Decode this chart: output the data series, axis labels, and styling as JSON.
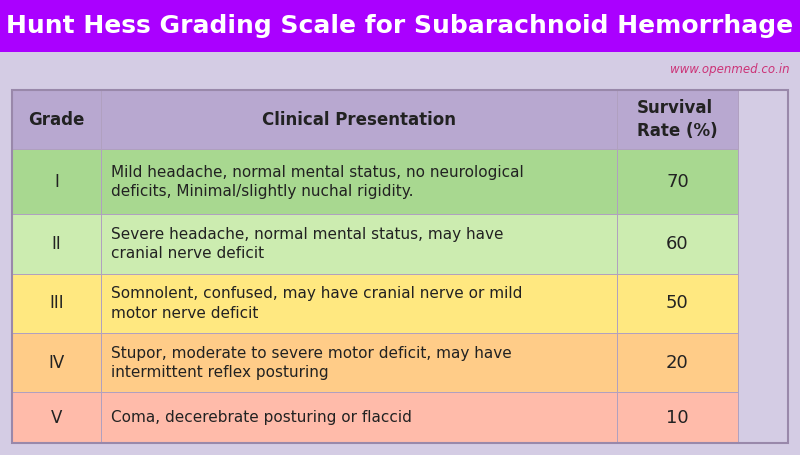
{
  "title": "Hunt Hess Grading Scale for Subarachnoid Hemorrhage",
  "title_bg": "#aa00ff",
  "title_color": "#ffffff",
  "watermark": "www.openmed.co.in",
  "watermark_color": "#cc3377",
  "bg_color": "#d4cce4",
  "header_bg": "#b8a8d0",
  "col_headers": [
    "Grade",
    "Clinical Presentation",
    "Survival\nRate (%)"
  ],
  "grades": [
    "I",
    "II",
    "III",
    "IV",
    "V"
  ],
  "descriptions": [
    "Mild headache, normal mental status, no neurological\ndeficits, Minimal/slightly nuchal rigidity.",
    "Severe headache, normal mental status, may have\ncranial nerve deficit",
    "Somnolent, confused, may have cranial nerve or mild\nmotor nerve deficit",
    "Stupor, moderate to severe motor deficit, may have\nintermittent reflex posturing",
    "Coma, decerebrate posturing or flaccid"
  ],
  "survival": [
    "70",
    "60",
    "50",
    "20",
    "10"
  ],
  "row_colors": [
    "#a8d890",
    "#ccecb0",
    "#ffe880",
    "#ffcc88",
    "#ffbbaa"
  ],
  "font_size_title": 18,
  "font_size_header": 12,
  "font_size_body": 11,
  "font_size_watermark": 8.5
}
